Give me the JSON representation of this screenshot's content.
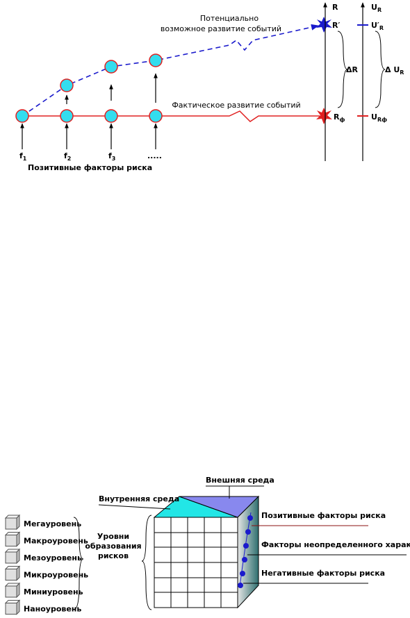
{
  "top_diagram": {
    "potential_title": [
      "Потенциально",
      "возможное развитие событий"
    ],
    "actual_title": "Фактическое развитие событий",
    "factors": [
      {
        "main": "f",
        "sub": "1"
      },
      {
        "main": "f",
        "sub": "2"
      },
      {
        "main": "f",
        "sub": "3"
      },
      {
        "main": ".....",
        "sub": ""
      }
    ],
    "factors_caption": "Позитивные факторы риска",
    "r_axis": {
      "axis": "R",
      "potential": "R′",
      "delta": "ΔR",
      "actual": {
        "main": "R",
        "sub": "ф"
      }
    },
    "u_axis": {
      "axis": {
        "main": "U",
        "sub": "R"
      },
      "potential": {
        "main": "U′",
        "sub": "R"
      },
      "delta": {
        "main": "Δ U",
        "sub": "R"
      },
      "actual": {
        "main": "U",
        "sub": "Rф"
      }
    }
  },
  "bottom_diagram": {
    "outer_env": "Внешняя среда",
    "inner_env": "Внутренняя среда",
    "levels": [
      "Мегауровень",
      "Макроуровень",
      "Мезоуровень",
      "Микроуровень",
      "Миниуровень",
      "Наноуровень"
    ],
    "levels_caption": [
      "Уровни",
      "образования",
      "рисков"
    ],
    "factor_lines": [
      "Позитивные факторы риска",
      "Факторы неопределенного характера",
      "Негативные факторы риска"
    ]
  }
}
